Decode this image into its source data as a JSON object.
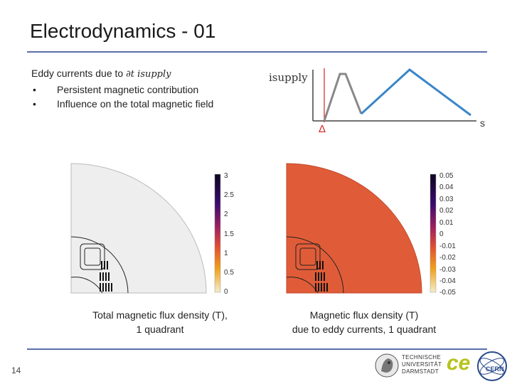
{
  "slide": {
    "title": "Electrodynamics - 01",
    "page_number": "14"
  },
  "bullets": {
    "heading_text": "Eddy currents due to ",
    "heading_math": "∂t isupply",
    "items": [
      "Persistent magnetic contribution",
      "Influence on the total magnetic field"
    ]
  },
  "waveform": {
    "y_label": "isupply",
    "x_label": "s",
    "marker_label": "Δ",
    "colors": {
      "initial": "#888888",
      "later": "#3a86c8",
      "marker": "#d22222"
    }
  },
  "plot_left": {
    "colorbar_ticks": [
      "3",
      "2.5",
      "2",
      "1.5",
      "1",
      "0.5",
      "0"
    ],
    "fill_color": "#eeeeee",
    "caption_line1": "Total magnetic flux density (T),",
    "caption_line2": "1 quadrant"
  },
  "plot_right": {
    "colorbar_ticks": [
      "0.05",
      "0.04",
      "0.03",
      "0.02",
      "0.01",
      "0",
      "-0.01",
      "-0.02",
      "-0.03",
      "-0.04",
      "-0.05"
    ],
    "fill_color": "#e05c38",
    "caption_line1": "Magnetic flux density (T)",
    "caption_line2": "due to eddy currents, 1 quadrant"
  },
  "logos": {
    "tud_lines": [
      "TECHNISCHE",
      "UNIVERSITÄT",
      "DARMSTADT"
    ],
    "ce_text": "ce",
    "cern_text": "CERN"
  }
}
